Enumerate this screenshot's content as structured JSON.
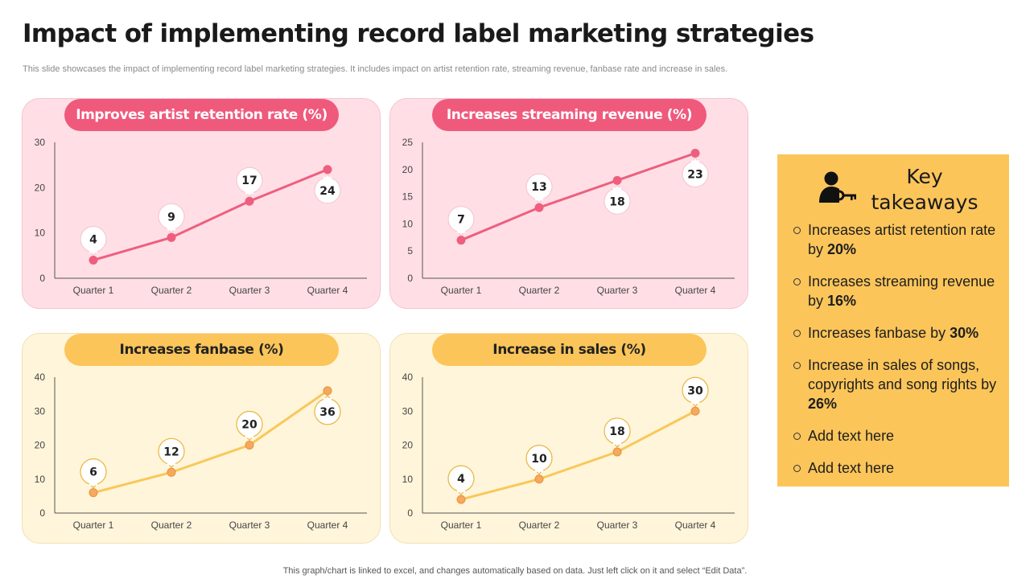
{
  "title": "Impact of implementing record label marketing strategies",
  "subtitle": "This slide showcases the impact of implementing record label marketing strategies. It includes impact on artist retention rate, streaming revenue, fanbase rate and increase in sales.",
  "chart_data": [
    {
      "type": "line",
      "title": "Improves artist retention rate (%)",
      "categories": [
        "Quarter 1",
        "Quarter 2",
        "Quarter 3",
        "Quarter 4"
      ],
      "values": [
        4,
        9,
        17,
        24
      ],
      "yticks": [
        0,
        10,
        20,
        30
      ],
      "ylim": [
        0,
        30
      ],
      "color": "#ee5f7f",
      "label_positions": [
        "above",
        "above",
        "above",
        "below"
      ],
      "grid": false
    },
    {
      "type": "line",
      "title": "Increases streaming revenue (%)",
      "categories": [
        "Quarter 1",
        "Quarter 2",
        "Quarter 3",
        "Quarter 4"
      ],
      "values": [
        7,
        13,
        18,
        23
      ],
      "yticks": [
        0,
        5,
        10,
        15,
        20,
        25
      ],
      "ylim": [
        0,
        25
      ],
      "color": "#ee5f7f",
      "label_positions": [
        "above",
        "above",
        "below",
        "below"
      ],
      "grid": false
    },
    {
      "type": "line",
      "title": "Increases fanbase (%)",
      "categories": [
        "Quarter 1",
        "Quarter 2",
        "Quarter 3",
        "Quarter 4"
      ],
      "values": [
        6,
        12,
        20,
        36
      ],
      "yticks": [
        0,
        10,
        20,
        30,
        40
      ],
      "ylim": [
        0,
        40
      ],
      "color": "#f8c85a",
      "label_positions": [
        "above",
        "above",
        "above",
        "below"
      ],
      "grid": false
    },
    {
      "type": "line",
      "title": "Increase in sales (%)",
      "categories": [
        "Quarter 1",
        "Quarter 2",
        "Quarter 3",
        "Quarter 4"
      ],
      "values": [
        4,
        10,
        18,
        30
      ],
      "yticks": [
        0,
        10,
        20,
        30,
        40
      ],
      "ylim": [
        0,
        40
      ],
      "color": "#f8c85a",
      "label_positions": [
        "above",
        "above",
        "above",
        "above"
      ],
      "grid": false
    }
  ],
  "key_takeaways": {
    "title": "Key takeaways",
    "icon": "person-key-icon",
    "items": [
      {
        "text": "Increases artist retention rate by ",
        "bold": "20%"
      },
      {
        "text": "Increases streaming revenue by ",
        "bold": "16%"
      },
      {
        "text": "Increases fanbase by ",
        "bold": "30%"
      },
      {
        "text": "Increase in sales of songs, copyrights and song rights by ",
        "bold": "26%"
      },
      {
        "text": "Add text here",
        "bold": ""
      },
      {
        "text": "Add text here",
        "bold": ""
      }
    ]
  },
  "footer": "This graph/chart is linked to excel,  and changes automatically based on data. Just left click on it and select “Edit Data”.",
  "colors": {
    "pink_panel": "#ffdfe5",
    "pink_accent": "#ef5a7c",
    "yellow_panel": "#fff5da",
    "yellow_accent": "#fbc55a"
  }
}
